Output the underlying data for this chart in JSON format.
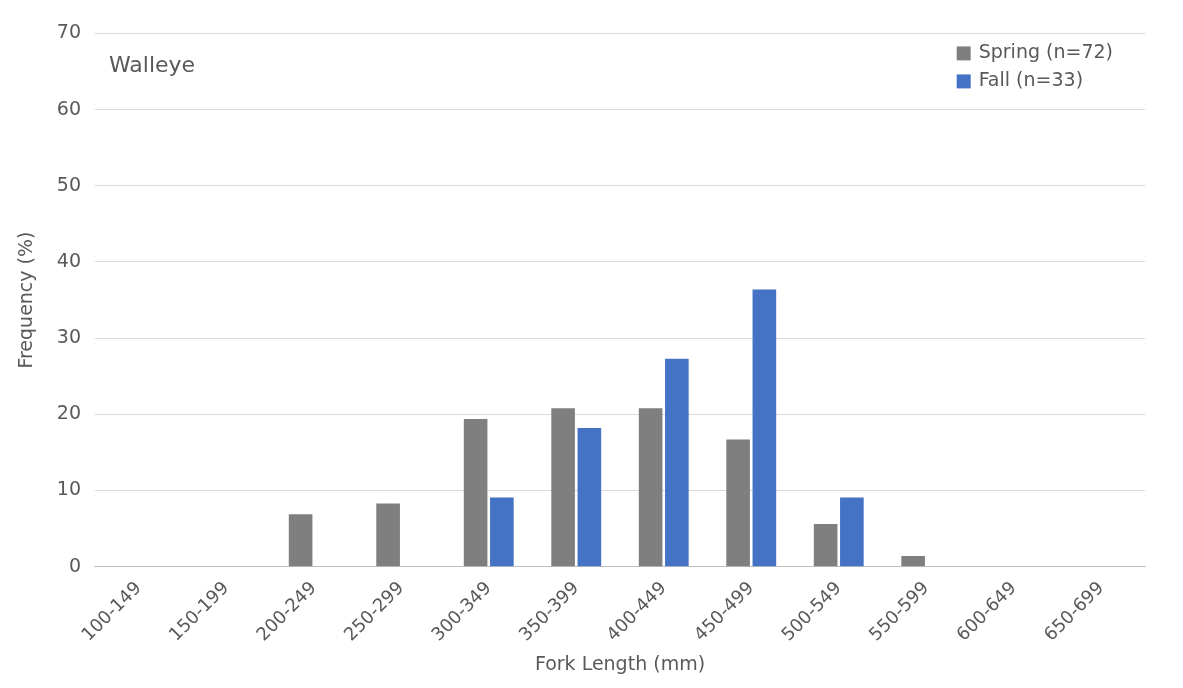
{
  "chart_data": {
    "type": "bar",
    "title": "Walleye",
    "xlabel": "Fork Length (mm)",
    "ylabel": "Frequency (%)",
    "categories": [
      "100-149",
      "150-199",
      "200-249",
      "250-299",
      "300-349",
      "350-399",
      "400-449",
      "450-499",
      "500-549",
      "550-599",
      "600-649",
      "650-699"
    ],
    "series": [
      {
        "name": "Spring (n=72)",
        "color": "#7f7f7f",
        "values": [
          0,
          0,
          6.9,
          8.3,
          19.4,
          20.8,
          20.8,
          16.7,
          5.6,
          1.4,
          0,
          0
        ]
      },
      {
        "name": "Fall (n=33)",
        "color": "#4472c4",
        "values": [
          0,
          0,
          0,
          0,
          9.1,
          18.2,
          27.3,
          36.4,
          9.1,
          0,
          0,
          0
        ]
      }
    ],
    "ylim": [
      0,
      70
    ],
    "yticks": [
      0,
      10,
      20,
      30,
      40,
      50,
      60,
      70
    ],
    "grid": "y",
    "legend": "top right"
  }
}
